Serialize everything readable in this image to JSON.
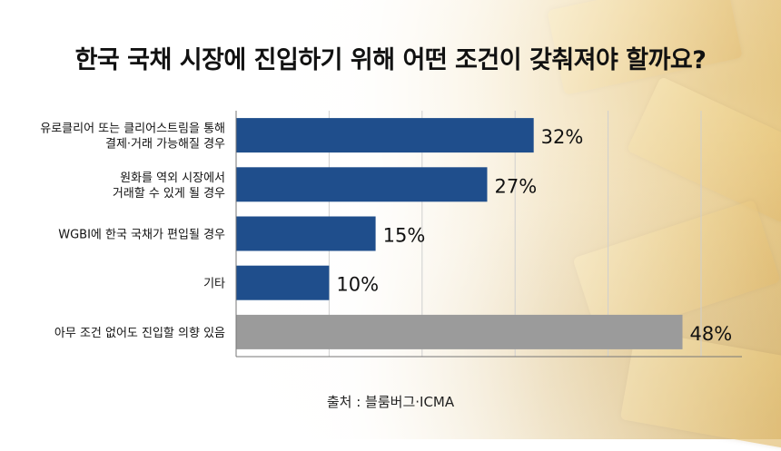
{
  "title": "한국 국채 시장에 진입하기 위해 어떤 조건이 갖춰져야 할까요?",
  "source": "출처 : 블룸버그·ICMA",
  "colors": {
    "primary_bar": "#1f4e8c",
    "highlight_bar": "#9b9b9b"
  },
  "chart_data": {
    "type": "bar",
    "orientation": "horizontal",
    "categories": [
      [
        "유로클리어 또는 클리어스트림을 통해",
        "결제·거래 가능해질 경우"
      ],
      [
        "원화를 역외 시장에서",
        "거래할 수 있게 될 경우"
      ],
      [
        "WGBI에 한국 국채가 편입될 경우"
      ],
      [
        "기타"
      ],
      [
        "아무 조건 없어도 진입할 의향 있음"
      ]
    ],
    "values": [
      32,
      27,
      15,
      10,
      48
    ],
    "value_labels": [
      "32%",
      "27%",
      "15%",
      "10%",
      "48%"
    ],
    "bar_colors": [
      "#1f4e8c",
      "#1f4e8c",
      "#1f4e8c",
      "#1f4e8c",
      "#9b9b9b"
    ],
    "xlim": [
      0,
      50
    ],
    "grid": true,
    "unit": "%"
  }
}
